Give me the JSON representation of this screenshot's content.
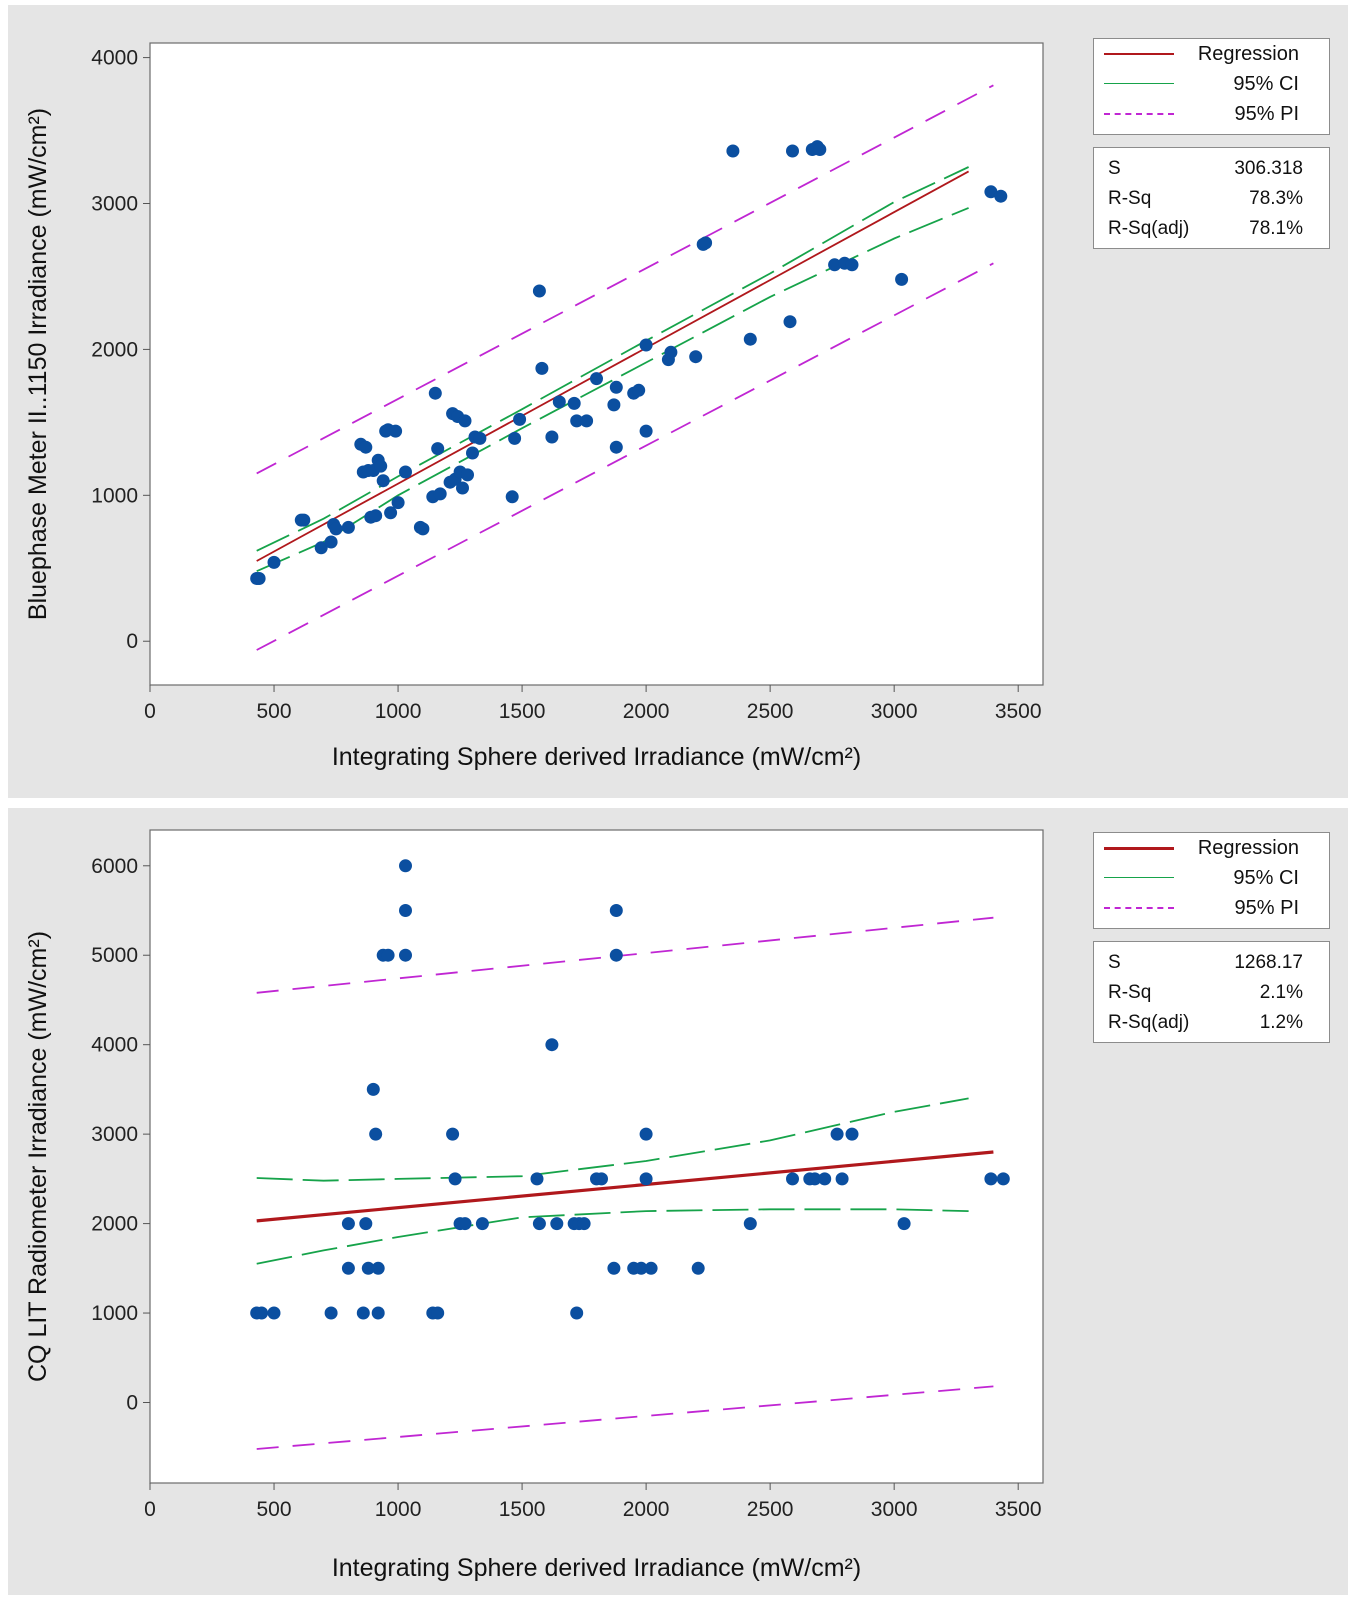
{
  "colors": {
    "regression": "#b0181c",
    "ci": "#16a34a",
    "pi": "#c026d3",
    "points": "#0b4fa0",
    "panel_bg": "#e5e5e5"
  },
  "chart_data": [
    {
      "type": "scatter",
      "xlabel": "Integrating Sphere derived Irradiance (mW/cm²)",
      "ylabel": "Bluephase Meter II..1150  Irradiance (mW/cm²)",
      "xlim": [
        0,
        3600
      ],
      "ylim": [
        -300,
        4100
      ],
      "xticks": [
        "0",
        "500",
        "1000",
        "1500",
        "2000",
        "2500",
        "3000",
        "3500"
      ],
      "yticks": [
        "0",
        "1000",
        "2000",
        "3000",
        "4000"
      ],
      "legend": [
        {
          "label": "Regression",
          "style": "solid-thin",
          "color": "#b0181c"
        },
        {
          "label": "95% CI",
          "style": "solid",
          "color": "#16a34a"
        },
        {
          "label": "95% PI",
          "style": "dashed",
          "color": "#c026d3"
        }
      ],
      "stats": [
        {
          "label": "S",
          "value": "306.318"
        },
        {
          "label": "R-Sq",
          "value": "78.3%"
        },
        {
          "label": "R-Sq(adj)",
          "value": "78.1%"
        }
      ],
      "regression": {
        "x": [
          430,
          3300
        ],
        "y": [
          550,
          3220
        ]
      },
      "ci_upper": {
        "x": [
          430,
          700,
          1000,
          1500,
          2000,
          2500,
          3000,
          3300
        ],
        "y": [
          620,
          840,
          1130,
          1590,
          2060,
          2520,
          3010,
          3250
        ]
      },
      "ci_lower": {
        "x": [
          430,
          700,
          1000,
          1500,
          2000,
          2500,
          3000,
          3300
        ],
        "y": [
          480,
          680,
          1000,
          1460,
          1910,
          2360,
          2760,
          2970
        ]
      },
      "pi_upper": {
        "x": [
          430,
          3400
        ],
        "y": [
          1150,
          3810
        ]
      },
      "pi_lower": {
        "x": [
          430,
          3400
        ],
        "y": [
          -60,
          2590
        ]
      },
      "points": {
        "x": [
          430,
          440,
          500,
          610,
          620,
          690,
          730,
          740,
          750,
          800,
          850,
          860,
          870,
          880,
          890,
          900,
          910,
          920,
          930,
          940,
          950,
          960,
          970,
          990,
          1000,
          1030,
          1090,
          1100,
          1140,
          1150,
          1160,
          1170,
          1210,
          1220,
          1230,
          1240,
          1250,
          1260,
          1270,
          1280,
          1300,
          1310,
          1330,
          1460,
          1470,
          1490,
          1570,
          1580,
          1620,
          1650,
          1710,
          1720,
          1760,
          1800,
          1870,
          1880,
          1880,
          1950,
          1970,
          2000,
          2000,
          2090,
          2100,
          2200,
          2230,
          2240,
          2350,
          2420,
          2580,
          2590,
          2670,
          2690,
          2700,
          2760,
          2800,
          2830,
          3030,
          3390,
          3430
        ],
        "y": [
          430,
          430,
          540,
          830,
          830,
          640,
          680,
          800,
          770,
          780,
          1350,
          1160,
          1330,
          1170,
          850,
          1170,
          860,
          1240,
          1200,
          1100,
          1440,
          1450,
          880,
          1440,
          950,
          1160,
          780,
          770,
          990,
          1700,
          1320,
          1010,
          1090,
          1560,
          1110,
          1540,
          1160,
          1050,
          1510,
          1140,
          1290,
          1400,
          1390,
          990,
          1390,
          1520,
          2400,
          1870,
          1400,
          1640,
          1630,
          1510,
          1510,
          1800,
          1620,
          1740,
          1330,
          1700,
          1720,
          1440,
          2030,
          1930,
          1980,
          1950,
          2720,
          2730,
          3360,
          2070,
          2190,
          3360,
          3370,
          3390,
          3370,
          2580,
          2590,
          2580,
          2480,
          3080,
          3050
        ]
      }
    },
    {
      "type": "scatter",
      "xlabel": "Integrating Sphere derived Irradiance (mW/cm²)",
      "ylabel": "CQ LIT Radiometer Irradiance (mW/cm²)",
      "xlim": [
        0,
        3600
      ],
      "ylim": [
        -900,
        6400
      ],
      "xticks": [
        "0",
        "500",
        "1000",
        "1500",
        "2000",
        "2500",
        "3000",
        "3500"
      ],
      "yticks": [
        "0",
        "1000",
        "2000",
        "3000",
        "4000",
        "5000",
        "6000"
      ],
      "legend": [
        {
          "label": "Regression",
          "style": "solid-thick",
          "color": "#b0181c"
        },
        {
          "label": "95% CI",
          "style": "solid",
          "color": "#16a34a"
        },
        {
          "label": "95% PI",
          "style": "dashed",
          "color": "#c026d3"
        }
      ],
      "stats": [
        {
          "label": "S",
          "value": "1268.17"
        },
        {
          "label": "R-Sq",
          "value": "2.1%"
        },
        {
          "label": "R-Sq(adj)",
          "value": "1.2%"
        }
      ],
      "regression": {
        "x": [
          430,
          3400
        ],
        "y": [
          2030,
          2800
        ]
      },
      "ci_upper": {
        "x": [
          430,
          700,
          1000,
          1500,
          2000,
          2500,
          3000,
          3300
        ],
        "y": [
          2510,
          2480,
          2500,
          2530,
          2700,
          2930,
          3250,
          3400
        ]
      },
      "ci_lower": {
        "x": [
          430,
          700,
          1000,
          1500,
          2000,
          2500,
          3000,
          3300
        ],
        "y": [
          1550,
          1700,
          1850,
          2070,
          2140,
          2160,
          2160,
          2140
        ]
      },
      "pi_upper": {
        "x": [
          430,
          3400
        ],
        "y": [
          4580,
          5420
        ]
      },
      "pi_lower": {
        "x": [
          430,
          3400
        ],
        "y": [
          -520,
          180
        ]
      },
      "points": {
        "x": [
          430,
          450,
          500,
          730,
          800,
          800,
          860,
          870,
          880,
          900,
          910,
          920,
          920,
          940,
          960,
          1030,
          1030,
          1030,
          1140,
          1160,
          1220,
          1230,
          1250,
          1270,
          1340,
          1560,
          1570,
          1620,
          1640,
          1710,
          1720,
          1730,
          1750,
          1800,
          1820,
          1870,
          1880,
          1880,
          1950,
          1980,
          2000,
          2000,
          2020,
          2210,
          2420,
          2590,
          2660,
          2680,
          2720,
          2770,
          2790,
          2830,
          3040,
          3390,
          3440
        ],
        "y": [
          1000,
          1000,
          1000,
          1000,
          1500,
          2000,
          1000,
          2000,
          1500,
          3500,
          3000,
          1500,
          1000,
          5000,
          5000,
          6000,
          5500,
          5000,
          1000,
          1000,
          3000,
          2500,
          2000,
          2000,
          2000,
          2500,
          2000,
          4000,
          2000,
          2000,
          1000,
          2000,
          2000,
          2500,
          2500,
          1500,
          5000,
          5500,
          1500,
          1500,
          3000,
          2500,
          1500,
          1500,
          2000,
          2500,
          2500,
          2500,
          2500,
          3000,
          2500,
          3000,
          2000,
          2500,
          2500
        ]
      }
    }
  ]
}
